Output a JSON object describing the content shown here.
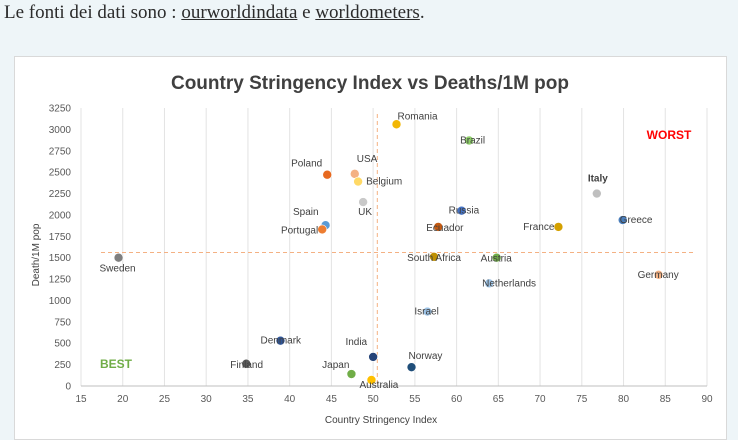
{
  "intro": {
    "prefix": "Le fonti dei dati sono : ",
    "link1": "ourworldindata",
    "middle": " e ",
    "link2": "worldometers",
    "suffix": "."
  },
  "chart_data": {
    "type": "scatter",
    "title": "Country Stringency Index vs Deaths/1M pop",
    "xlabel": "Country Stringency Index",
    "ylabel": "Death/1M pop",
    "xlim": [
      15,
      90
    ],
    "ylim": [
      0,
      3250
    ],
    "xticks": [
      15,
      20,
      25,
      30,
      35,
      40,
      45,
      50,
      55,
      60,
      65,
      70,
      75,
      80,
      85,
      90
    ],
    "yticks": [
      0,
      250,
      500,
      750,
      1000,
      1250,
      1500,
      1750,
      2000,
      2250,
      2500,
      2750,
      3000,
      3250
    ],
    "grid": "vertical",
    "reference_lines": {
      "x": 50.5,
      "y": 1560
    },
    "corner_labels": {
      "worst": "WORST",
      "best": "BEST"
    },
    "points": [
      {
        "label": "Romania",
        "x": 52.8,
        "y": 3060,
        "color": "#f2b705"
      },
      {
        "label": "Brazil",
        "x": 61.5,
        "y": 2870,
        "color": "#8fce6a"
      },
      {
        "label": "Poland",
        "x": 44.5,
        "y": 2470,
        "color": "#e7691f"
      },
      {
        "label": "USA",
        "x": 47.8,
        "y": 2480,
        "color": "#f4b183"
      },
      {
        "label": "Belgium",
        "x": 48.2,
        "y": 2390,
        "color": "#ffd966"
      },
      {
        "label": "Italy",
        "x": 76.8,
        "y": 2250,
        "color": "#bfbfbf"
      },
      {
        "label": "UK",
        "x": 48.8,
        "y": 2150,
        "color": "#c9c9c9"
      },
      {
        "label": "Spain",
        "x": 44.3,
        "y": 1880,
        "color": "#5b9bd5"
      },
      {
        "label": "Portugal",
        "x": 43.9,
        "y": 1830,
        "color": "#ed7d31"
      },
      {
        "label": "Russia",
        "x": 60.6,
        "y": 2050,
        "color": "#4472c4"
      },
      {
        "label": "Greece",
        "x": 79.9,
        "y": 1940,
        "color": "#4a7ebb"
      },
      {
        "label": "Ecuador",
        "x": 57.8,
        "y": 1860,
        "color": "#c55a11"
      },
      {
        "label": "France",
        "x": 72.2,
        "y": 1860,
        "color": "#d4a000"
      },
      {
        "label": "Sweden",
        "x": 19.5,
        "y": 1500,
        "color": "#7f7f7f"
      },
      {
        "label": "South Africa",
        "x": 57.3,
        "y": 1510,
        "color": "#bf8f00"
      },
      {
        "label": "Austria",
        "x": 64.8,
        "y": 1500,
        "color": "#70ad47"
      },
      {
        "label": "Netherlands",
        "x": 63.9,
        "y": 1200,
        "color": "#9dc3e6"
      },
      {
        "label": "Germany",
        "x": 84.2,
        "y": 1300,
        "color": "#f4b183"
      },
      {
        "label": "Israel",
        "x": 56.5,
        "y": 870,
        "color": "#9dc3e6"
      },
      {
        "label": "Denmark",
        "x": 38.9,
        "y": 530,
        "color": "#2f5597"
      },
      {
        "label": "Finland",
        "x": 34.8,
        "y": 260,
        "color": "#595959"
      },
      {
        "label": "India",
        "x": 50.0,
        "y": 340,
        "color": "#264478"
      },
      {
        "label": "Norway",
        "x": 54.6,
        "y": 220,
        "color": "#1f4e79"
      },
      {
        "label": "Japan",
        "x": 47.4,
        "y": 140,
        "color": "#70ad47"
      },
      {
        "label": "Australia",
        "x": 49.8,
        "y": 70,
        "color": "#ffc000"
      }
    ]
  }
}
